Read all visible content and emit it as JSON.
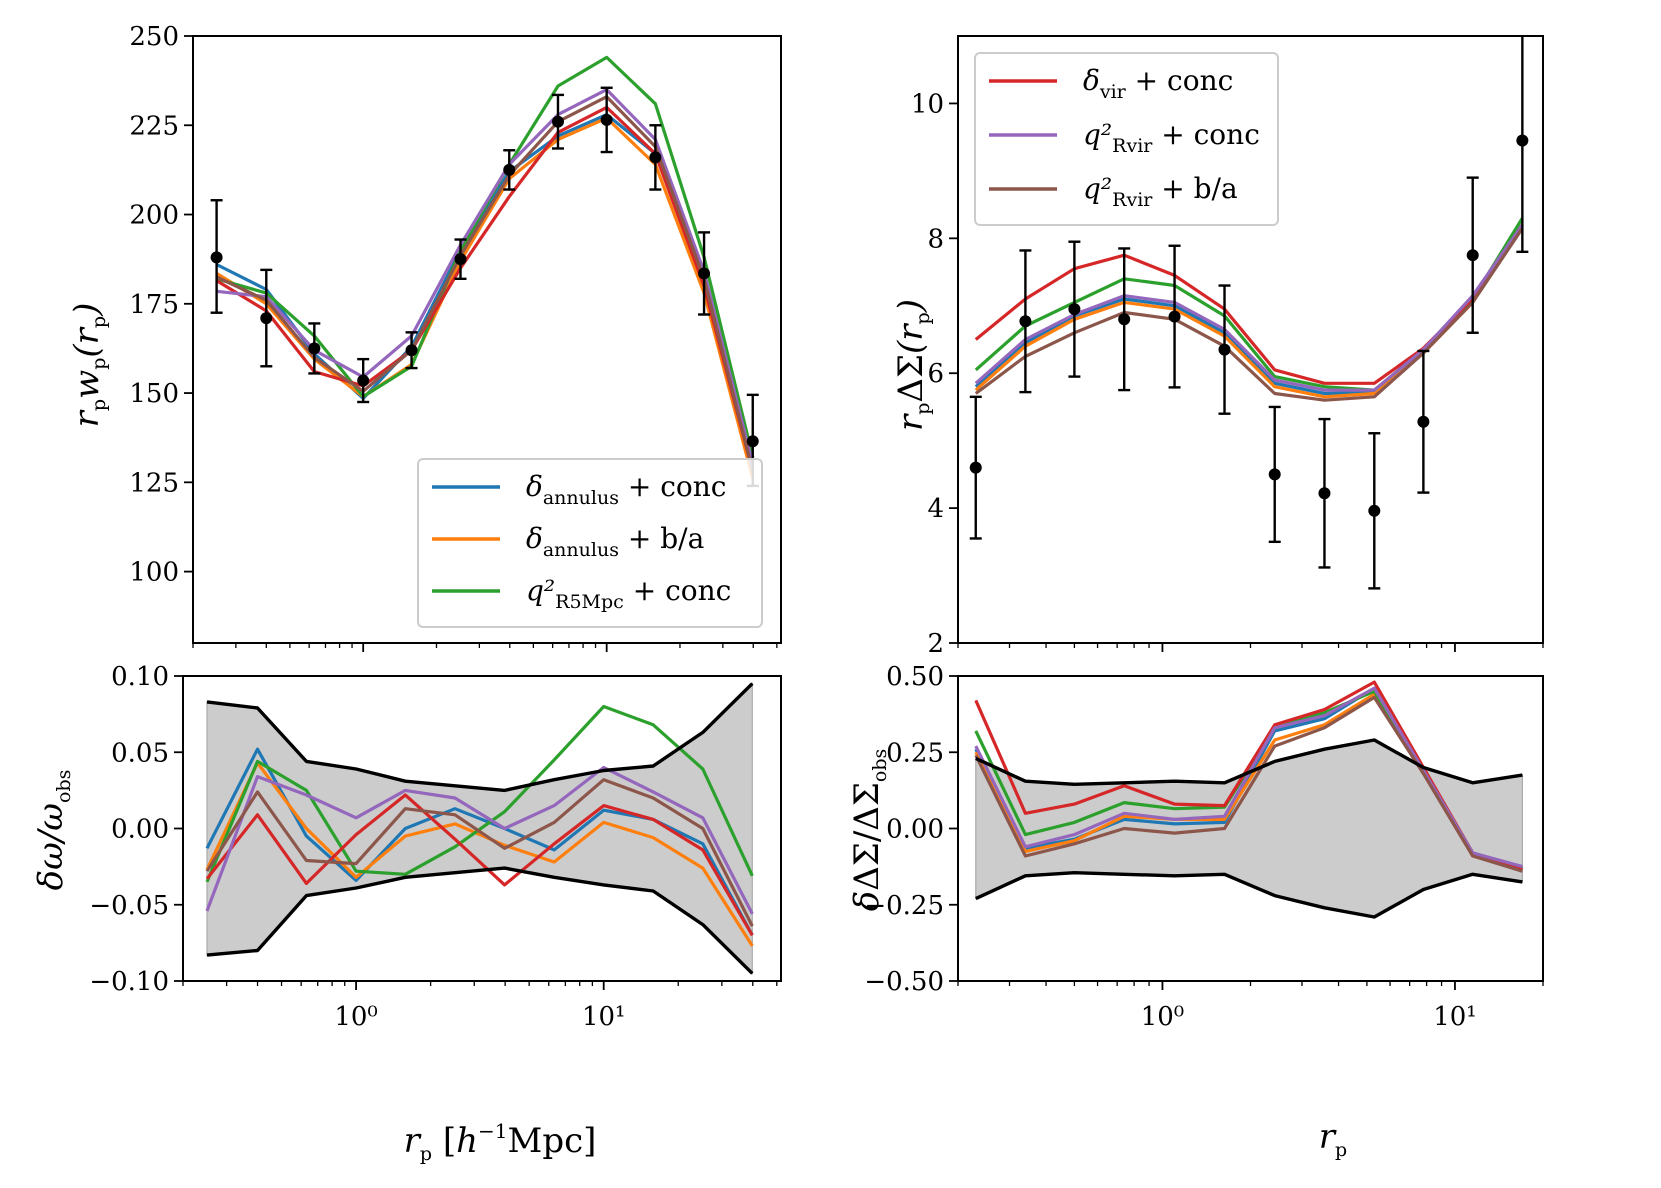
{
  "figure": {
    "colors": {
      "blue": "#1f77b4",
      "orange": "#ff7f0e",
      "green": "#2ca02c",
      "red": "#d62728",
      "purple": "#9467bd",
      "brown": "#8c564b",
      "black": "#000000",
      "band": "#cccccc"
    }
  },
  "chart_data": [
    {
      "id": "wp-top",
      "type": "line",
      "xscale": "log",
      "xlim": [
        0.2,
        52
      ],
      "ylim": [
        80,
        250
      ],
      "ylabel": "r_p w_p(r_p)",
      "yticks": [
        100,
        125,
        150,
        175,
        200,
        225,
        250
      ],
      "ytick_labels": [
        "100",
        "125",
        "150",
        "175",
        "200",
        "225",
        "250"
      ],
      "x": [
        0.25,
        0.4,
        0.63,
        1.0,
        1.58,
        2.51,
        3.98,
        6.31,
        10.0,
        15.85,
        25.12,
        39.81
      ],
      "observed": {
        "y": [
          188,
          171,
          162.5,
          153.5,
          162,
          187.5,
          212.5,
          226,
          226.5,
          216,
          183.5,
          136.5
        ],
        "yerr_low": [
          15.5,
          13.5,
          7,
          6,
          5,
          5.5,
          5.5,
          7.5,
          9,
          9,
          11.5,
          12.5
        ],
        "yerr_high": [
          16,
          13.5,
          7,
          6,
          5,
          5.5,
          5.5,
          7.5,
          9,
          9,
          11.5,
          13
        ]
      },
      "series": [
        {
          "name": "δ_annulus + conc",
          "color": "#1f77b4",
          "values": [
            186,
            179,
            161,
            148.5,
            163,
            190,
            212,
            222,
            228,
            217,
            181,
            127
          ]
        },
        {
          "name": "δ_annulus + b/a",
          "color": "#ff7f0e",
          "values": [
            183.5,
            175,
            159.5,
            149,
            158,
            187,
            210,
            221,
            227,
            214,
            178,
            126
          ]
        },
        {
          "name": "q²_R5Mpc + conc",
          "color": "#2ca02c",
          "values": [
            182,
            178,
            166,
            149,
            157.5,
            190,
            214,
            236,
            244,
            231,
            188,
            132
          ]
        },
        {
          "name": "δ_vir + conc",
          "color": "#d62728",
          "values": [
            181.5,
            173,
            156,
            152,
            162,
            185,
            205,
            223,
            230,
            217,
            180,
            128
          ]
        },
        {
          "name": "q²_Rvir + conc",
          "color": "#9467bd",
          "values": [
            178.5,
            177,
            162,
            154.5,
            166,
            191.5,
            214,
            228,
            235,
            221,
            184,
            130
          ]
        },
        {
          "name": "q²_Rvir + b/a",
          "color": "#8c564b",
          "values": [
            182.5,
            176,
            160,
            150.5,
            162,
            188.5,
            211,
            226,
            233,
            219,
            182,
            128
          ]
        }
      ],
      "legend": {
        "location": "lower right",
        "entries": [
          {
            "symbol": "δ",
            "sub": "annulus",
            "rest": "+ conc",
            "color": "#1f77b4"
          },
          {
            "symbol": "δ",
            "sub": "annulus",
            "rest": "+ b/a",
            "color": "#ff7f0e"
          },
          {
            "symbol": "q²",
            "sub": "R5Mpc",
            "rest": "+ conc",
            "color": "#2ca02c"
          }
        ]
      }
    },
    {
      "id": "ds-top",
      "type": "line",
      "xscale": "log",
      "xlim": [
        0.2,
        20
      ],
      "ylim": [
        2,
        11
      ],
      "ylabel": "r_p ΔΣ(r_p)",
      "yticks": [
        2,
        4,
        6,
        8,
        10
      ],
      "ytick_labels": [
        "2",
        "4",
        "6",
        "8",
        "10"
      ],
      "x": [
        0.23,
        0.34,
        0.5,
        0.74,
        1.1,
        1.63,
        2.42,
        3.58,
        5.3,
        7.8,
        11.5,
        17.0
      ],
      "observed": {
        "y": [
          4.6,
          6.77,
          6.95,
          6.8,
          6.84,
          6.35,
          4.5,
          4.22,
          3.96,
          5.28,
          7.75,
          9.45
        ],
        "yerr_low": [
          1.05,
          1.05,
          1.0,
          1.05,
          1.05,
          0.95,
          1.0,
          1.1,
          1.15,
          1.05,
          1.15,
          1.65
        ],
        "yerr_high": [
          1.05,
          1.05,
          1.0,
          1.05,
          1.05,
          0.95,
          1.0,
          1.1,
          1.15,
          1.05,
          1.15,
          1.65
        ]
      },
      "series": [
        {
          "name": "δ_annulus + conc",
          "color": "#1f77b4",
          "values": [
            5.8,
            6.45,
            6.85,
            7.1,
            7.0,
            6.6,
            5.85,
            5.7,
            5.72,
            6.33,
            7.1,
            8.2
          ]
        },
        {
          "name": "δ_annulus + b/a",
          "color": "#ff7f0e",
          "values": [
            5.75,
            6.4,
            6.8,
            7.05,
            6.95,
            6.55,
            5.8,
            5.65,
            5.7,
            6.3,
            7.05,
            8.2
          ]
        },
        {
          "name": "q²_R5Mpc + conc",
          "color": "#2ca02c",
          "values": [
            6.05,
            6.7,
            7.05,
            7.4,
            7.3,
            6.85,
            5.95,
            5.8,
            5.75,
            6.35,
            7.1,
            8.3
          ]
        },
        {
          "name": "δ_vir + conc",
          "color": "#d62728",
          "values": [
            6.5,
            7.1,
            7.55,
            7.75,
            7.45,
            6.95,
            6.05,
            5.85,
            5.85,
            6.37,
            7.1,
            8.2
          ]
        },
        {
          "name": "q²_Rvir + conc",
          "color": "#9467bd",
          "values": [
            5.85,
            6.5,
            6.87,
            7.15,
            7.05,
            6.65,
            5.9,
            5.75,
            5.75,
            6.35,
            7.15,
            8.2
          ]
        },
        {
          "name": "q²_Rvir + b/a",
          "color": "#8c564b",
          "values": [
            5.7,
            6.25,
            6.6,
            6.9,
            6.8,
            6.4,
            5.7,
            5.6,
            5.65,
            6.3,
            7.05,
            8.15
          ]
        }
      ],
      "legend": {
        "location": "upper left",
        "entries": [
          {
            "symbol": "δ",
            "sub": "vir",
            "rest": "+ conc",
            "color": "#d62728"
          },
          {
            "symbol": "q²",
            "sub": "Rvir",
            "rest": "+ conc",
            "color": "#9467bd"
          },
          {
            "symbol": "q²",
            "sub": "Rvir",
            "rest": "+ b/a",
            "color": "#8c564b"
          }
        ]
      }
    },
    {
      "id": "wp-bottom",
      "type": "line",
      "xscale": "log",
      "xlim": [
        0.2,
        52
      ],
      "ylim": [
        -0.1,
        0.1
      ],
      "ylabel": "δω/ω_obs",
      "xlabel": "r_p [h⁻¹Mpc]",
      "yticks": [
        -0.1,
        -0.05,
        0.0,
        0.05,
        0.1
      ],
      "ytick_labels": [
        "−0.10",
        "−0.05",
        "0.00",
        "0.05",
        "0.10"
      ],
      "xticks": [
        1,
        10
      ],
      "xtick_labels": [
        "10⁰",
        "10¹"
      ],
      "x": [
        0.25,
        0.4,
        0.63,
        1.0,
        1.58,
        2.51,
        3.98,
        6.31,
        10.0,
        15.85,
        25.12,
        39.81
      ],
      "band_upper": [
        0.083,
        0.079,
        0.044,
        0.039,
        0.031,
        0.028,
        0.025,
        0.032,
        0.038,
        0.041,
        0.063,
        0.095
      ],
      "band_lower": [
        -0.083,
        -0.08,
        -0.044,
        -0.039,
        -0.032,
        -0.029,
        -0.026,
        -0.032,
        -0.037,
        -0.041,
        -0.063,
        -0.095
      ],
      "series": [
        {
          "name": "δ_annulus + conc",
          "color": "#1f77b4",
          "values": [
            -0.013,
            0.052,
            -0.005,
            -0.034,
            0.0,
            0.013,
            0.0,
            -0.014,
            0.012,
            0.006,
            -0.01,
            -0.07
          ]
        },
        {
          "name": "δ_annulus + b/a",
          "color": "#ff7f0e",
          "values": [
            -0.027,
            0.043,
            0.0,
            -0.032,
            -0.005,
            0.003,
            -0.011,
            -0.022,
            0.004,
            -0.006,
            -0.026,
            -0.077
          ]
        },
        {
          "name": "q²_R5Mpc + conc",
          "color": "#2ca02c",
          "values": [
            -0.035,
            0.044,
            0.025,
            -0.028,
            -0.03,
            -0.012,
            0.011,
            0.045,
            0.08,
            0.068,
            0.039,
            -0.031
          ]
        },
        {
          "name": "δ_vir + conc",
          "color": "#d62728",
          "values": [
            -0.033,
            0.009,
            -0.036,
            -0.004,
            0.022,
            -0.007,
            -0.037,
            -0.01,
            0.015,
            0.006,
            -0.014,
            -0.07
          ]
        },
        {
          "name": "q²_Rvir + conc",
          "color": "#9467bd",
          "values": [
            -0.054,
            0.034,
            0.022,
            0.007,
            0.025,
            0.02,
            0.0,
            0.015,
            0.04,
            0.024,
            0.007,
            -0.056
          ]
        },
        {
          "name": "q²_Rvir + b/a",
          "color": "#8c564b",
          "values": [
            -0.028,
            0.024,
            -0.021,
            -0.023,
            0.013,
            0.009,
            -0.013,
            0.004,
            0.032,
            0.02,
            0.0,
            -0.064
          ]
        }
      ]
    },
    {
      "id": "ds-bottom",
      "type": "line",
      "xscale": "log",
      "xlim": [
        0.2,
        20
      ],
      "ylim": [
        -0.5,
        0.5
      ],
      "ylabel": "δΔΣ/ΔΣ_obs",
      "xlabel": "r_p",
      "yticks": [
        -0.5,
        -0.25,
        0.0,
        0.25,
        0.5
      ],
      "ytick_labels": [
        "−0.50",
        "−0.25",
        "0.00",
        "0.25",
        "0.50"
      ],
      "xticks": [
        1,
        10
      ],
      "xtick_labels": [
        "10⁰",
        "10¹"
      ],
      "x": [
        0.23,
        0.34,
        0.5,
        0.74,
        1.1,
        1.63,
        2.42,
        3.58,
        5.3,
        7.8,
        11.5,
        17.0
      ],
      "band_upper": [
        0.23,
        0.155,
        0.145,
        0.15,
        0.155,
        0.15,
        0.22,
        0.26,
        0.29,
        0.2,
        0.15,
        0.175
      ],
      "band_lower": [
        -0.23,
        -0.155,
        -0.145,
        -0.15,
        -0.155,
        -0.15,
        -0.22,
        -0.26,
        -0.29,
        -0.2,
        -0.15,
        -0.175
      ],
      "series": [
        {
          "name": "δ_annulus + conc",
          "color": "#1f77b4",
          "values": [
            0.26,
            -0.065,
            -0.035,
            0.03,
            0.015,
            0.02,
            0.32,
            0.36,
            0.46,
            0.19,
            -0.08,
            -0.13
          ]
        },
        {
          "name": "δ_annulus + b/a",
          "color": "#ff7f0e",
          "values": [
            0.25,
            -0.075,
            -0.04,
            0.04,
            0.03,
            0.03,
            0.29,
            0.34,
            0.44,
            0.19,
            -0.09,
            -0.135
          ]
        },
        {
          "name": "q²_R5Mpc + conc",
          "color": "#2ca02c",
          "values": [
            0.32,
            -0.02,
            0.02,
            0.085,
            0.065,
            0.07,
            0.33,
            0.38,
            0.45,
            0.19,
            -0.085,
            -0.13
          ]
        },
        {
          "name": "δ_vir + conc",
          "color": "#d62728",
          "values": [
            0.42,
            0.05,
            0.08,
            0.14,
            0.08,
            0.075,
            0.34,
            0.39,
            0.48,
            0.2,
            -0.08,
            -0.135
          ]
        },
        {
          "name": "q²_Rvir + conc",
          "color": "#9467bd",
          "values": [
            0.27,
            -0.06,
            -0.02,
            0.05,
            0.03,
            0.04,
            0.33,
            0.37,
            0.46,
            0.19,
            -0.08,
            -0.125
          ]
        },
        {
          "name": "q²_Rvir + b/a",
          "color": "#8c564b",
          "values": [
            0.24,
            -0.09,
            -0.05,
            0.0,
            -0.015,
            0.0,
            0.27,
            0.33,
            0.43,
            0.18,
            -0.09,
            -0.14
          ]
        }
      ]
    }
  ]
}
